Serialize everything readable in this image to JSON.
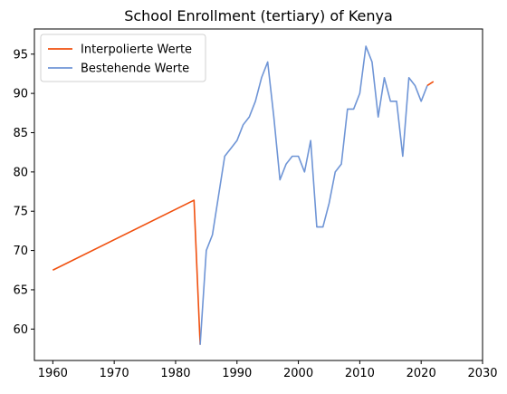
{
  "chart_data": {
    "type": "line",
    "title": "School Enrollment (tertiary) of Kenya",
    "xlabel": "",
    "ylabel": "",
    "xlim": [
      1957,
      2030
    ],
    "ylim": [
      56,
      98.2
    ],
    "x_ticks": [
      1960,
      1970,
      1980,
      1990,
      2000,
      2010,
      2020,
      2030
    ],
    "y_ticks": [
      60,
      65,
      70,
      75,
      80,
      85,
      90,
      95
    ],
    "grid": false,
    "legend_position": "top-left",
    "series": [
      {
        "name": "Interpolierte Werte",
        "color": "#f0500f",
        "points": [
          [
            1960,
            67.5
          ],
          [
            1983,
            76.4
          ],
          [
            1984,
            58.0
          ]
        ]
      },
      {
        "name": "Interpolierte Werte",
        "color": "#f0500f",
        "points": [
          [
            2021,
            91.0
          ],
          [
            2022,
            91.5
          ]
        ]
      },
      {
        "name": "Bestehende Werte",
        "color": "#6f95d6",
        "points": [
          [
            1984,
            58.0
          ],
          [
            1985,
            70.0
          ],
          [
            1986,
            72.0
          ],
          [
            1987,
            77.0
          ],
          [
            1988,
            82.0
          ],
          [
            1989,
            83.0
          ],
          [
            1990,
            84.0
          ],
          [
            1991,
            86.0
          ],
          [
            1992,
            87.0
          ],
          [
            1993,
            89.0
          ],
          [
            1994,
            92.0
          ],
          [
            1995,
            94.0
          ],
          [
            1996,
            87.0
          ],
          [
            1997,
            79.0
          ],
          [
            1998,
            81.0
          ],
          [
            1999,
            82.0
          ],
          [
            2000,
            82.0
          ],
          [
            2001,
            80.0
          ],
          [
            2002,
            84.0
          ],
          [
            2003,
            73.0
          ],
          [
            2004,
            73.0
          ],
          [
            2005,
            76.0
          ],
          [
            2006,
            80.0
          ],
          [
            2007,
            81.0
          ],
          [
            2008,
            88.0
          ],
          [
            2009,
            88.0
          ],
          [
            2010,
            90.0
          ],
          [
            2011,
            96.0
          ],
          [
            2012,
            94.0
          ],
          [
            2013,
            87.0
          ],
          [
            2014,
            92.0
          ],
          [
            2015,
            89.0
          ],
          [
            2016,
            89.0
          ],
          [
            2017,
            82.0
          ],
          [
            2018,
            92.0
          ],
          [
            2019,
            91.0
          ],
          [
            2020,
            89.0
          ],
          [
            2021,
            91.0
          ]
        ]
      }
    ],
    "legend": [
      {
        "label": "Interpolierte Werte",
        "color": "#f0500f"
      },
      {
        "label": "Bestehende Werte",
        "color": "#6f95d6"
      }
    ]
  }
}
